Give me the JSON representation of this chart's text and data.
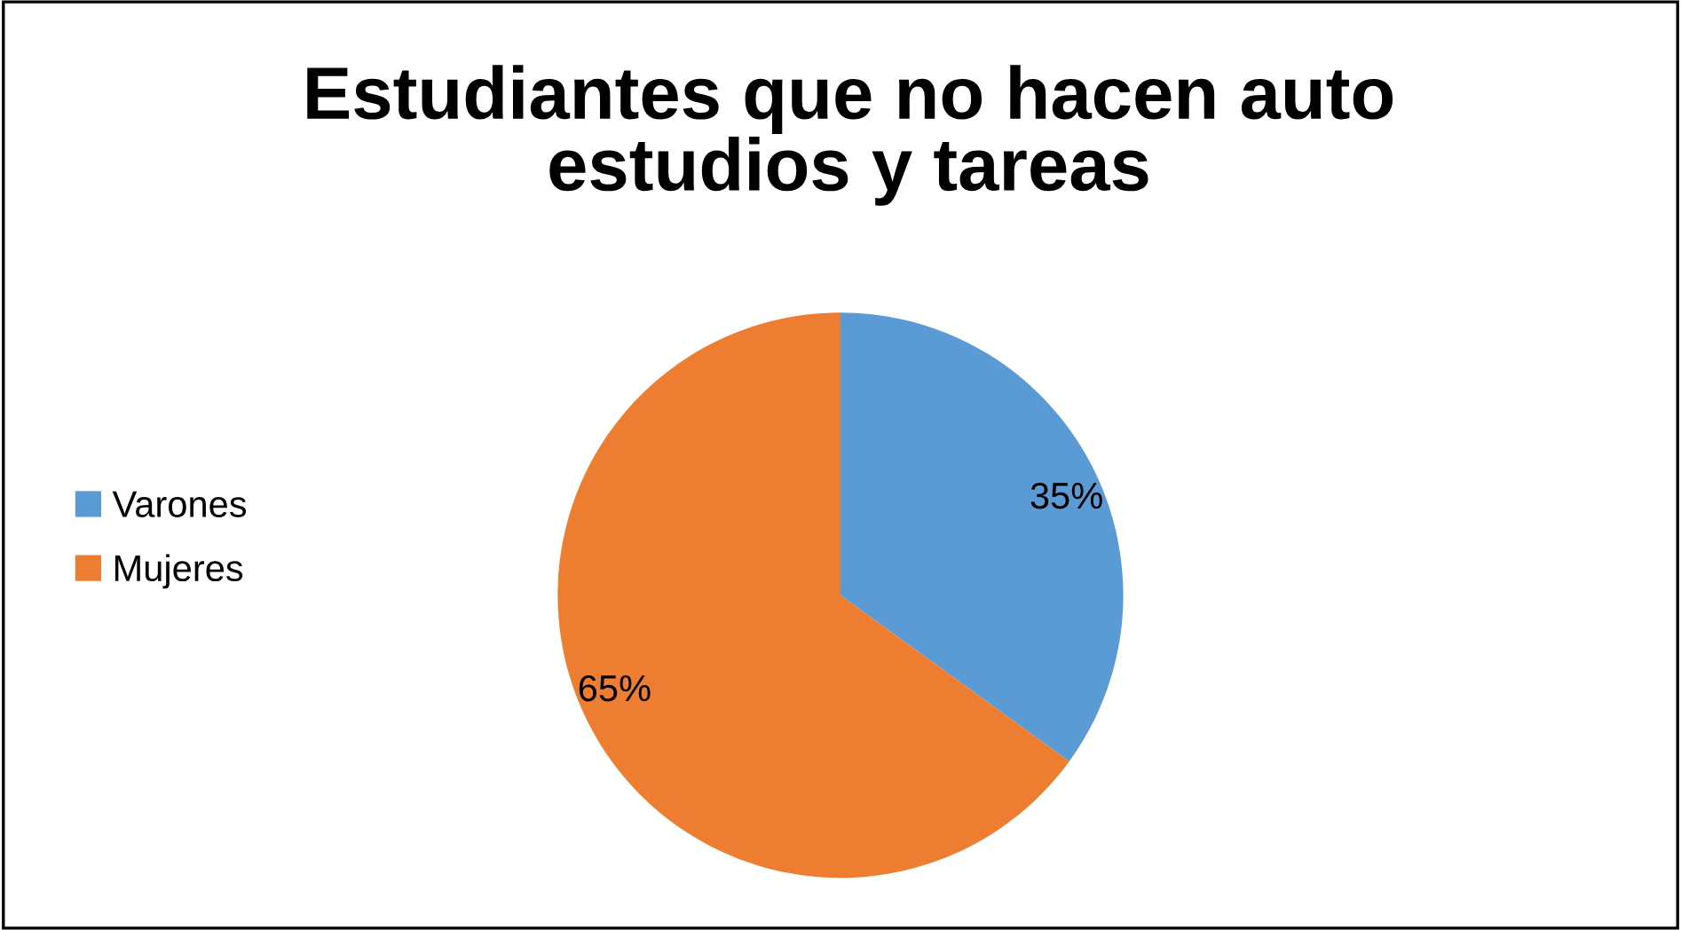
{
  "chart_data": {
    "type": "pie",
    "title": "Estudiantes que no hacen auto\nestudios y tareas",
    "categories": [
      "Varones",
      "Mujeres"
    ],
    "values": [
      35,
      65
    ],
    "colors": [
      "#5b9bd5",
      "#ed7d31"
    ],
    "value_labels": [
      "35%",
      "65%"
    ],
    "legend": "left"
  }
}
